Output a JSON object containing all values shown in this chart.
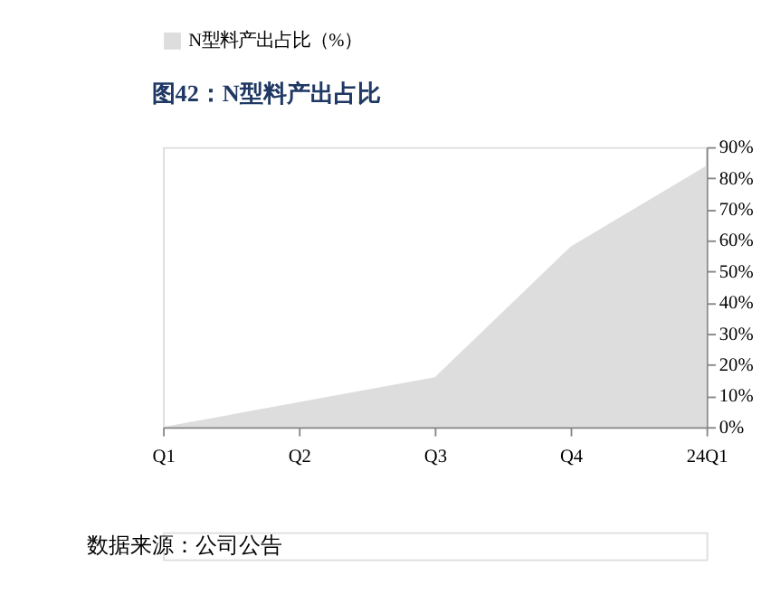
{
  "chart_data": {
    "type": "area",
    "title": "图42：N型料产出占比",
    "categories": [
      "Q1",
      "Q2",
      "Q3",
      "Q4",
      "24Q1"
    ],
    "series": [
      {
        "name": "N型料产出占比（%）",
        "color": "#dddddd",
        "values": [
          0,
          8,
          16,
          58,
          84
        ]
      }
    ],
    "ylim": [
      0,
      90
    ],
    "yticks": [
      {
        "value": 0,
        "label": "0%"
      },
      {
        "value": 10,
        "label": "10%"
      },
      {
        "value": 20,
        "label": "20%"
      },
      {
        "value": 30,
        "label": "30%"
      },
      {
        "value": 40,
        "label": "40%"
      },
      {
        "value": 50,
        "label": "50%"
      },
      {
        "value": 60,
        "label": "60%"
      },
      {
        "value": 70,
        "label": "70%"
      },
      {
        "value": 80,
        "label": "80%"
      },
      {
        "value": 90,
        "label": "90%"
      }
    ],
    "grid": false,
    "legend": "top",
    "annotations": [
      "数据来源：公司公告"
    ]
  }
}
